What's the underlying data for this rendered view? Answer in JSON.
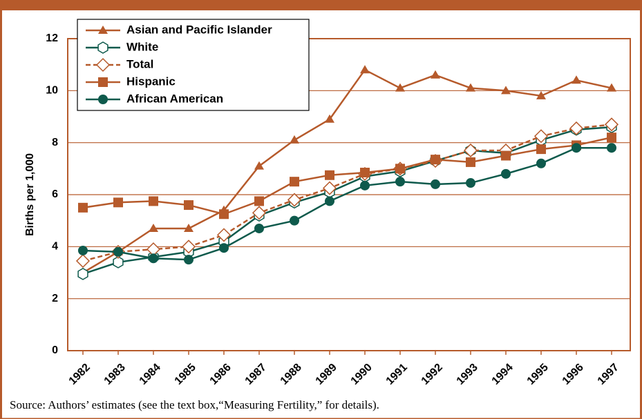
{
  "chart_data": {
    "type": "line",
    "y_label": "Births per 1,000",
    "source": "Source: Authors’ estimates (see the text box,“Measuring Fertility,” for details).",
    "categories": [
      "1982",
      "1983",
      "1984",
      "1985",
      "1986",
      "1987",
      "1988",
      "1989",
      "1990",
      "1991",
      "1992",
      "1993",
      "1994",
      "1995",
      "1996",
      "1997"
    ],
    "ylim": [
      0,
      12
    ],
    "yticks": [
      0,
      2,
      4,
      6,
      8,
      10,
      12
    ],
    "grid": true,
    "legend": "top-left",
    "series": [
      {
        "name": "Asian and Pacific Islander",
        "color": "#b65a2b",
        "marker": "triangle",
        "dashed": false,
        "values": [
          3.0,
          3.8,
          4.7,
          4.7,
          5.4,
          7.1,
          8.1,
          8.9,
          10.8,
          10.1,
          10.6,
          10.1,
          10.0,
          9.8,
          10.4,
          10.1
        ]
      },
      {
        "name": "White",
        "color": "#0e5a4c",
        "marker": "hexagon",
        "dashed": false,
        "values": [
          2.95,
          3.4,
          3.6,
          3.8,
          4.2,
          5.2,
          5.7,
          6.1,
          6.7,
          6.9,
          7.3,
          7.7,
          7.6,
          8.1,
          8.5,
          8.6
        ]
      },
      {
        "name": "Total",
        "color": "#b65a2b",
        "marker": "diamond",
        "dashed": true,
        "values": [
          3.45,
          3.8,
          3.9,
          4.0,
          4.45,
          5.3,
          5.8,
          6.25,
          6.8,
          7.0,
          7.3,
          7.7,
          7.7,
          8.25,
          8.55,
          8.7
        ]
      },
      {
        "name": "Hispanic",
        "color": "#b65a2b",
        "marker": "square",
        "dashed": false,
        "values": [
          5.5,
          5.7,
          5.75,
          5.6,
          5.25,
          5.75,
          6.5,
          6.75,
          6.85,
          7.0,
          7.35,
          7.25,
          7.5,
          7.75,
          7.9,
          8.2
        ]
      },
      {
        "name": "African American",
        "color": "#0e5a4c",
        "marker": "circle",
        "dashed": false,
        "values": [
          3.85,
          3.8,
          3.55,
          3.5,
          3.95,
          4.7,
          5.0,
          5.75,
          6.35,
          6.5,
          6.4,
          6.45,
          6.8,
          7.2,
          7.8,
          7.8
        ]
      }
    ]
  }
}
